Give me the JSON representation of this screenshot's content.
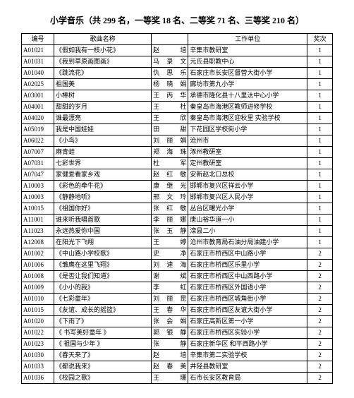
{
  "title": "小学音乐（共 299 名，一等奖 18 名、二等奖 71 名、三等奖 210 名）",
  "headers": {
    "id": "编号",
    "song": "歌曲名称",
    "name": "",
    "unit": "工作单位",
    "award": "奖次"
  },
  "rows": [
    {
      "id": "A01021",
      "song": "《假如我有一枝小花》",
      "name": "赵　培",
      "unit": "辛集市教研室",
      "award": "1"
    },
    {
      "id": "A01031",
      "song": "《我到草原画图画》",
      "name": "马录文",
      "unit": "元氏县职教中心",
      "award": "1"
    },
    {
      "id": "A01040",
      "song": "《跳流花》",
      "name": "仇思乐",
      "unit": "石家庄市长安区督营大街小学",
      "award": "1"
    },
    {
      "id": "A02025",
      "song": "祖国美",
      "name": "杨晓娟",
      "unit": "廊坊市第九小学",
      "award": "1"
    },
    {
      "id": "A03001",
      "song": "小棒树",
      "name": "王丙华",
      "unit": "承德市隆化县十八里汰中心小学",
      "award": "1"
    },
    {
      "id": "A04001",
      "song": "甜甜的岁月",
      "name": "王　杜",
      "unit": "秦皇岛市海港区教师进修学校",
      "award": "1"
    },
    {
      "id": "A04020",
      "song": "谁最漂亮",
      "name": "王　欣",
      "unit": "秦皇岛市海港区迎秋里 实验学校",
      "award": "1"
    },
    {
      "id": "A05019",
      "song": "我是中国娃娃",
      "name": "田　甜",
      "unit": "下花园区学校街小学",
      "award": "1"
    },
    {
      "id": "A06022",
      "song": "《小鸟》",
      "name": "刘丽娟",
      "unit": "沧州市",
      "award": "1"
    },
    {
      "id": "A07007",
      "song": "麻青蛙",
      "name": "郑海珠",
      "unit": "涿州教研室",
      "award": "1"
    },
    {
      "id": "A07031",
      "song": "七彩世界",
      "name": "杜　军",
      "unit": "定州教研室",
      "award": "1"
    },
    {
      "id": "A07047",
      "song": "家健爱看家乡戏",
      "name": "赵红敏",
      "unit": "安新赵北口总校",
      "award": "1"
    },
    {
      "id": "A10003",
      "song": "《彩色的牵牛花》",
      "name": "康继光",
      "unit": "邯郸市复兴区祥云小学",
      "award": "1"
    },
    {
      "id": "A10003",
      "song": "《静静地听》",
      "name": "邢文玲",
      "unit": "邯郸市复兴区人民小学",
      "award": "1"
    },
    {
      "id": "A10015",
      "song": "《祖国你好》",
      "name": "张红敏",
      "unit": "丛台区曙光小学",
      "award": "1"
    },
    {
      "id": "A11001",
      "song": "谁来听我唱首歌",
      "name": "李丽娜",
      "unit": "唐山裕华道一小",
      "award": "1"
    },
    {
      "id": "A11023",
      "song": "永远热爱你中国",
      "name": "张玉静",
      "unit": "滦县二小",
      "award": "1"
    },
    {
      "id": "A12008",
      "song": "在阳光下飞翔",
      "name": "王　婷",
      "unit": "沧州市教育局石油分局油建小学",
      "award": "1"
    },
    {
      "id": "A01002",
      "song": "《中山路小学校歌》",
      "name": "史　净",
      "unit": "石家庄市桥西区中山路小学",
      "award": "2"
    },
    {
      "id": "A01006",
      "song": "《雏鹰在这里飞翔》",
      "name": "刘速海",
      "unit": "石家庄市桥西区乐里小学",
      "award": "2"
    },
    {
      "id": "A01008",
      "song": "《是否让我们知道》",
      "name": "谢　斌",
      "unit": "石家庄市桥西区中山西路小学",
      "award": "2"
    },
    {
      "id": "A01009",
      "song": "《小小的我》",
      "name": "李　虹",
      "unit": "石家庄市桥西区外国语小学",
      "award": "2"
    },
    {
      "id": "A01010",
      "song": "《七彩童年》",
      "name": "刘丽昆",
      "unit": "石家庄市桥西区城角街小学",
      "award": "2"
    },
    {
      "id": "A01015",
      "song": "《友谊、成长的摇篮》",
      "name": "王春华",
      "unit": "石家庄市桥西区友谊大街小学",
      "award": "2"
    },
    {
      "id": "A01020",
      "song": "《下雨了》",
      "name": "张会娟",
      "unit": "石家庄高新区第一小学",
      "award": "2"
    },
    {
      "id": "A01022",
      "song": "《 书写美好童年 》",
      "name": "郭银静",
      "unit": "石家庄市桥西区实验小学",
      "award": "2"
    },
    {
      "id": "A01023",
      "song": "《 祖国与少年 》",
      "name": "张　静",
      "unit": "石家庄新华区 和平西路小学",
      "award": "2"
    },
    {
      "id": "A01030",
      "song": "《春天来了》",
      "name": "赵　培",
      "unit": "辛集市第二实验学校",
      "award": "2"
    },
    {
      "id": "A01033",
      "song": "《都说我来》",
      "name": "赵春美",
      "unit": "井陉县教研室",
      "award": "2"
    },
    {
      "id": "A01036",
      "song": "《校园之歌》",
      "name": "王　珊",
      "unit": "石市长安区教育局",
      "award": "2"
    }
  ]
}
